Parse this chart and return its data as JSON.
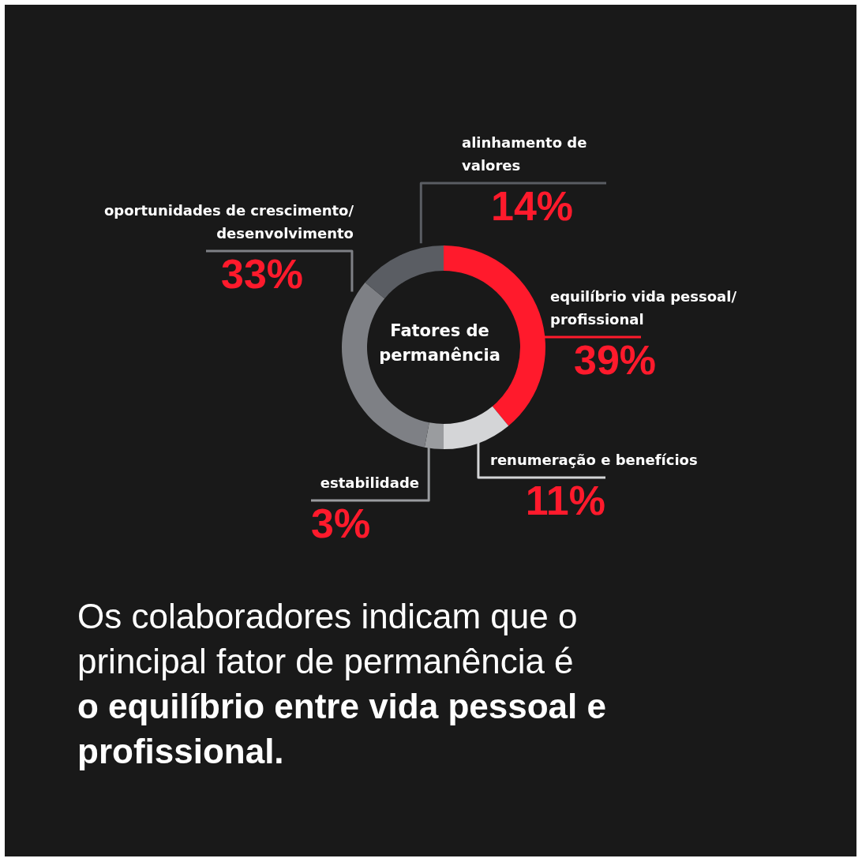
{
  "chart_data": {
    "type": "donut",
    "title": "Fatores de permanência",
    "categories": [
      "equilíbrio vida pessoal/ profissional",
      "renumeração e benefícios",
      "estabilidade",
      "oportunidades de crescimento/ desenvolvimento",
      "alinhamento de valores"
    ],
    "values": [
      39,
      11,
      3,
      33,
      14
    ],
    "colors": [
      "#ff1a2c",
      "#d4d5d7",
      "#9a9c9f",
      "#7e8085",
      "#5a5d63"
    ],
    "value_labels": [
      "39%",
      "11%",
      "3%",
      "33%",
      "14%"
    ],
    "annotations": [
      "Os colaboradores indicam que o principal fator de permanência é",
      "o equilíbrio entre vida pessoal e profissional."
    ]
  }
}
